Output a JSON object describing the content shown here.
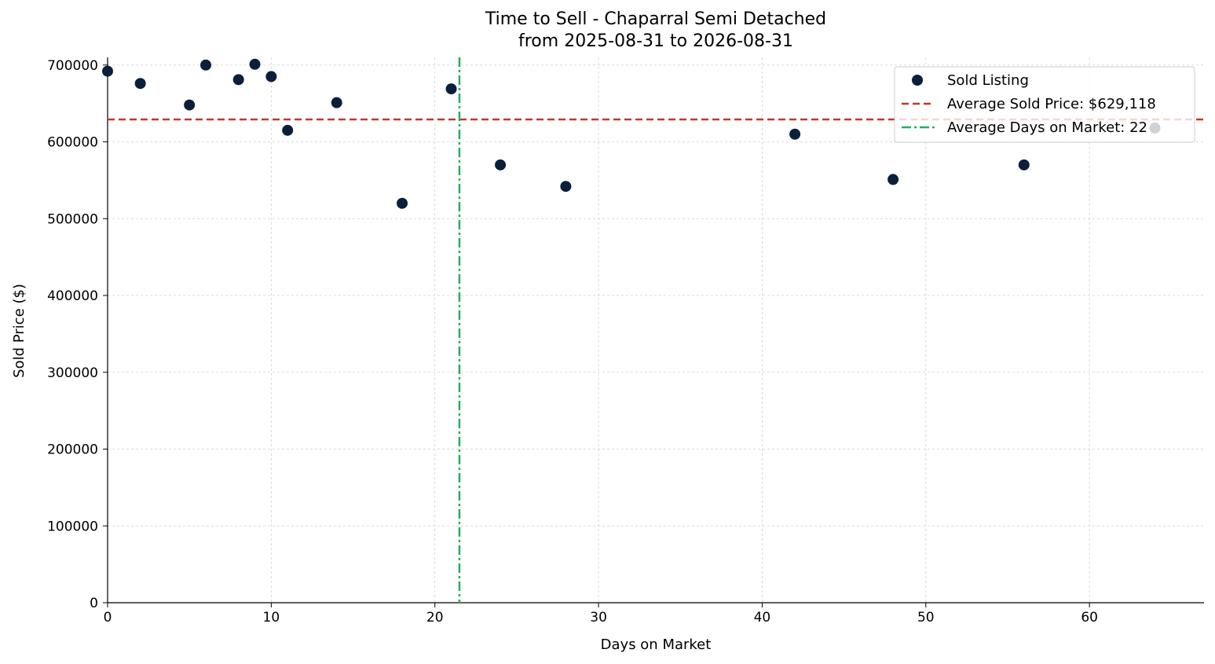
{
  "chart_data": {
    "type": "scatter",
    "title_line1": "Time to Sell - Chaparral Semi Detached",
    "title_line2": "from 2025-08-31 to 2026-08-31",
    "xlabel": "Days on Market",
    "ylabel": "Sold Price ($)",
    "xlim": [
      0,
      67
    ],
    "ylim": [
      0,
      710000
    ],
    "x_ticks": [
      0,
      10,
      20,
      30,
      40,
      50,
      60
    ],
    "y_ticks": [
      0,
      100000,
      200000,
      300000,
      400000,
      500000,
      600000,
      700000
    ],
    "grid": true,
    "legend_placement": "top-right",
    "series": [
      {
        "name": "Sold Listing",
        "color": "#0b1f3a",
        "points": [
          {
            "x": 0,
            "y": 692000
          },
          {
            "x": 2,
            "y": 676000
          },
          {
            "x": 5,
            "y": 648000
          },
          {
            "x": 6,
            "y": 700000
          },
          {
            "x": 8,
            "y": 681000
          },
          {
            "x": 9,
            "y": 701000
          },
          {
            "x": 10,
            "y": 685000
          },
          {
            "x": 11,
            "y": 615000
          },
          {
            "x": 14,
            "y": 651000
          },
          {
            "x": 18,
            "y": 520000
          },
          {
            "x": 21,
            "y": 669000
          },
          {
            "x": 24,
            "y": 570000
          },
          {
            "x": 28,
            "y": 542000
          },
          {
            "x": 42,
            "y": 610000
          },
          {
            "x": 48,
            "y": 551000
          },
          {
            "x": 56,
            "y": 570000
          },
          {
            "x": 64,
            "y": 618000
          }
        ]
      }
    ],
    "reference_lines": {
      "avg_price": {
        "label": "Average Sold Price: $629,118",
        "value": 629118,
        "color": "#c0392b"
      },
      "avg_days": {
        "label": "Average Days on Market: 22",
        "value": 21.5,
        "color": "#27ae60"
      }
    }
  }
}
